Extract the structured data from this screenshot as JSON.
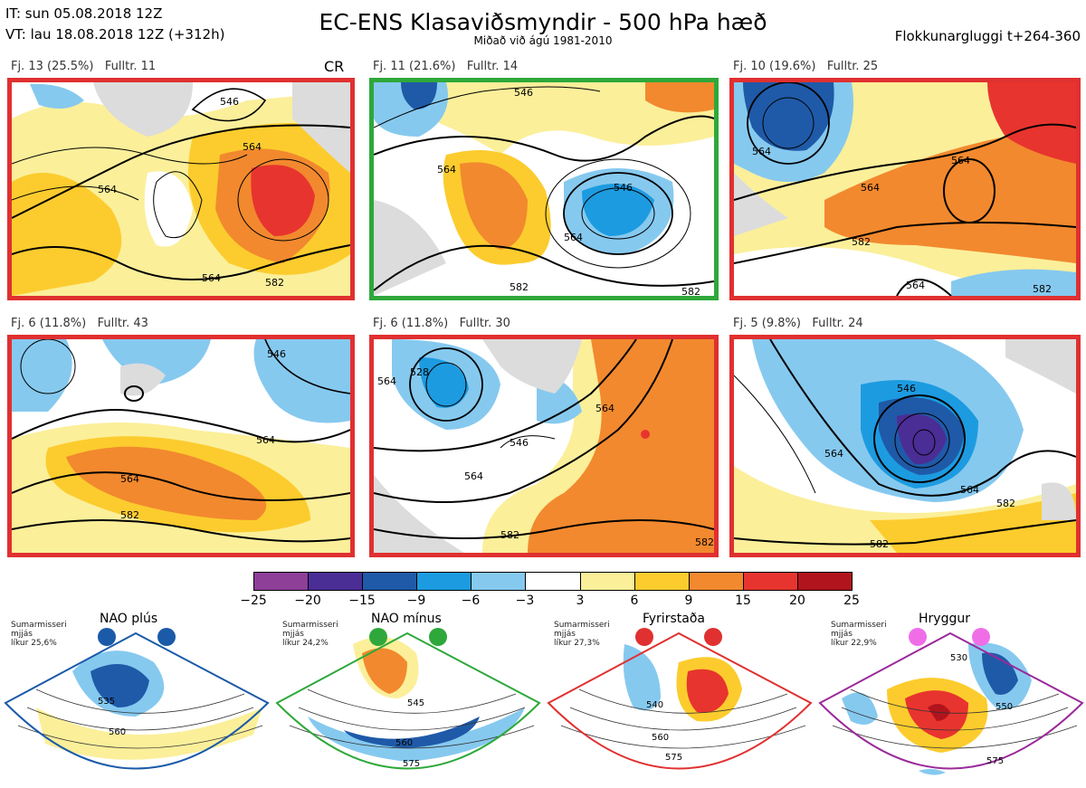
{
  "header": {
    "it_line": "IT: sun 05.08.2018 12Z",
    "vt_line": "VT: lau 18.08.2018 12Z  (+312h)",
    "title": "EC-ENS Klasaviðsmyndir - 500 hPa hæð",
    "subtitle": "Miðað við ágú 1981-2010",
    "window": "Flokkunargluggi t+264-360"
  },
  "panels": [
    {
      "label": "Fj. 13 (25.5%)   Fulltr. 11",
      "marker": "CR",
      "border": "#e03030",
      "contours": [
        "546",
        "564",
        "564",
        "564",
        "582"
      ]
    },
    {
      "label": "Fj. 11 (21.6%)   Fulltr. 14",
      "border": "#2ea83a",
      "contours": [
        "546",
        "546",
        "564",
        "564",
        "582",
        "582"
      ]
    },
    {
      "label": "Fj. 10 (19.6%)   Fulltr. 25",
      "border": "#e03030",
      "contours": [
        "564",
        "564",
        "564",
        "582",
        "564",
        "582"
      ]
    },
    {
      "label": "Fj. 6 (11.8%)   Fulltr. 43",
      "border": "#e03030",
      "contours": [
        "546",
        "564",
        "564",
        "582"
      ]
    },
    {
      "label": "Fj. 6 (11.8%)   Fulltr. 30",
      "border": "#e03030",
      "contours": [
        "528",
        "564",
        "546",
        "564",
        "564",
        "582",
        "582"
      ]
    },
    {
      "label": "Fj. 5 (9.8%)   Fulltr. 24",
      "border": "#e03030",
      "contours": [
        "546",
        "564",
        "564",
        "582",
        "582"
      ]
    }
  ],
  "colorbar": {
    "ticks": [
      "−25",
      "−20",
      "−15",
      "−9",
      "−6",
      "−3",
      "3",
      "6",
      "9",
      "15",
      "20",
      "25"
    ],
    "colors": [
      "#8e3f98",
      "#4b2d96",
      "#1f5aa8",
      "#1d9be0",
      "#86c9ef",
      "#ffffff",
      "#fbef9a",
      "#fccc2e",
      "#f2892e",
      "#e8342e",
      "#b1141c"
    ]
  },
  "regimes": [
    {
      "name": "NAO plús",
      "info": "Sumarmisseri\nmjjás\nlíkur 25,6%",
      "color": "#1a5aa8",
      "contours": [
        "535",
        "560"
      ]
    },
    {
      "name": "NAO mínus",
      "info": "Sumarmisseri\nmjjás\nlíkur 24,2%",
      "color": "#2ea83a",
      "contours": [
        "545",
        "560",
        "575"
      ]
    },
    {
      "name": "Fyrirstaða",
      "info": "Sumarmisseri\nmjjás\nlíkur 27,3%",
      "color": "#e03030",
      "contours": [
        "540",
        "560",
        "575"
      ]
    },
    {
      "name": "Hryggur",
      "info": "Sumarmisseri\nmjjás\nlíkur 22,9%",
      "color": "#9a2a9a",
      "contours": [
        "530",
        "550",
        "575"
      ]
    }
  ]
}
